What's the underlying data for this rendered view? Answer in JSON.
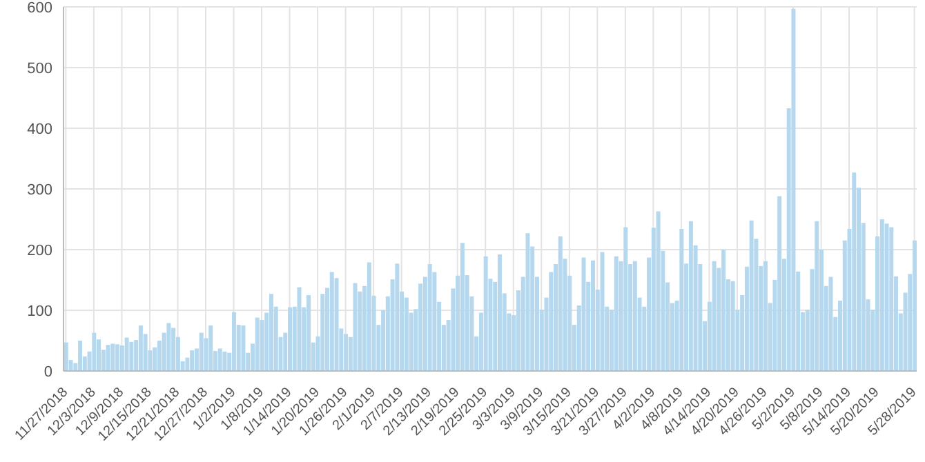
{
  "chart_data": {
    "type": "bar",
    "color": "#b5d8ef",
    "grid": true,
    "ylim": [
      0,
      600
    ],
    "yticks": [
      0,
      100,
      200,
      300,
      400,
      500,
      600
    ],
    "categories": [
      "11/27/2018",
      null,
      null,
      null,
      null,
      null,
      "12/3/2018",
      null,
      null,
      null,
      null,
      null,
      "12/9/2018",
      null,
      null,
      null,
      null,
      null,
      "12/15/2018",
      null,
      null,
      null,
      null,
      null,
      "12/21/2018",
      null,
      null,
      null,
      null,
      null,
      "12/27/2018",
      null,
      null,
      null,
      null,
      null,
      "1/2/2019",
      null,
      null,
      null,
      null,
      null,
      "1/8/2019",
      null,
      null,
      null,
      null,
      null,
      "1/14/2019",
      null,
      null,
      null,
      null,
      null,
      "1/20/2019",
      null,
      null,
      null,
      null,
      null,
      "1/26/2019",
      null,
      null,
      null,
      null,
      null,
      "2/1/2019",
      null,
      null,
      null,
      null,
      null,
      "2/7/2019",
      null,
      null,
      null,
      null,
      null,
      "2/13/2019",
      null,
      null,
      null,
      null,
      null,
      "2/19/2019",
      null,
      null,
      null,
      null,
      null,
      "2/25/2019",
      null,
      null,
      null,
      null,
      null,
      "3/3/2019",
      null,
      null,
      null,
      null,
      null,
      "3/9/2019",
      null,
      null,
      null,
      null,
      null,
      "3/15/2019",
      null,
      null,
      null,
      null,
      null,
      "3/21/2019",
      null,
      null,
      null,
      null,
      null,
      "3/27/2019",
      null,
      null,
      null,
      null,
      null,
      "4/2/2019",
      null,
      null,
      null,
      null,
      null,
      "4/8/2019",
      null,
      null,
      null,
      null,
      null,
      "4/14/2019",
      null,
      null,
      null,
      null,
      null,
      "4/20/2019",
      null,
      null,
      null,
      null,
      null,
      "4/26/2019",
      null,
      null,
      null,
      null,
      null,
      "5/2/2019",
      null,
      null,
      null,
      null,
      null,
      "5/8/2019",
      null,
      null,
      null,
      null,
      null,
      "5/14/2019",
      null,
      null,
      null,
      null,
      null,
      "5/20/2019",
      null,
      null,
      null,
      null,
      null,
      null,
      null,
      "5/28/2019"
    ],
    "values": [
      47,
      18,
      13,
      50,
      24,
      32,
      63,
      52,
      35,
      43,
      45,
      44,
      42,
      55,
      48,
      51,
      75,
      61,
      34,
      39,
      50,
      63,
      79,
      71,
      56,
      16,
      22,
      34,
      37,
      63,
      54,
      75,
      33,
      37,
      32,
      30,
      97,
      76,
      75,
      30,
      45,
      88,
      84,
      96,
      127,
      106,
      56,
      63,
      105,
      106,
      138,
      105,
      125,
      47,
      57,
      127,
      137,
      163,
      153,
      70,
      61,
      56,
      145,
      131,
      140,
      179,
      124,
      76,
      100,
      123,
      151,
      177,
      131,
      121,
      96,
      102,
      144,
      155,
      176,
      163,
      114,
      76,
      84,
      136,
      157,
      211,
      158,
      123,
      57,
      96,
      189,
      152,
      147,
      192,
      128,
      95,
      92,
      133,
      155,
      227,
      205,
      155,
      101,
      121,
      163,
      176,
      222,
      185,
      157,
      76,
      108,
      187,
      147,
      182,
      134,
      196,
      106,
      101,
      189,
      181,
      237,
      176,
      181,
      121,
      106,
      187,
      236,
      263,
      198,
      146,
      112,
      116,
      234,
      177,
      247,
      207,
      176,
      82,
      114,
      181,
      170,
      200,
      151,
      148,
      101,
      125,
      172,
      248,
      218,
      173,
      181,
      112,
      150,
      288,
      185,
      433,
      597,
      164,
      97,
      101,
      168,
      247,
      200,
      140,
      155,
      89,
      116,
      215,
      234,
      327,
      302,
      244,
      118,
      101,
      222,
      250,
      243,
      237,
      156,
      95,
      129,
      160,
      215
    ]
  }
}
